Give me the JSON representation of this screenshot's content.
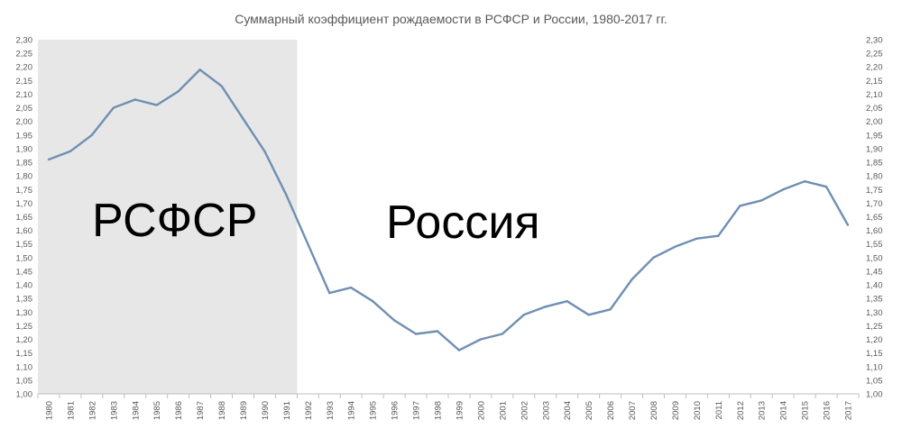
{
  "chart_data": {
    "type": "line",
    "title": "Суммарный коэффициент рождаемости в РСФСР и России, 1980-2017 гг.",
    "xlabel": "",
    "ylabel": "",
    "ylim": [
      1.0,
      2.3
    ],
    "ytick_step": 0.05,
    "y_axis_sides": [
      "left",
      "right"
    ],
    "grid": false,
    "decimal_separator": ",",
    "shaded_region": {
      "from": 1980,
      "to": 1991,
      "color": "#e7e7e7"
    },
    "region_labels": [
      {
        "text": "РСФСР",
        "period": "1980-1991"
      },
      {
        "text": "Россия",
        "period": "1992-2017"
      }
    ],
    "line_color": "#6f8fb3",
    "x": [
      1980,
      1981,
      1982,
      1983,
      1984,
      1985,
      1986,
      1987,
      1988,
      1989,
      1990,
      1991,
      1992,
      1993,
      1994,
      1995,
      1996,
      1997,
      1998,
      1999,
      2000,
      2001,
      2002,
      2003,
      2004,
      2005,
      2006,
      2007,
      2008,
      2009,
      2010,
      2011,
      2012,
      2013,
      2014,
      2015,
      2016,
      2017
    ],
    "series": [
      {
        "values": [
          1.86,
          1.89,
          1.95,
          2.05,
          2.08,
          2.06,
          2.11,
          2.19,
          2.13,
          2.01,
          1.89,
          1.73,
          1.55,
          1.37,
          1.39,
          1.34,
          1.27,
          1.22,
          1.23,
          1.16,
          1.2,
          1.22,
          1.29,
          1.32,
          1.34,
          1.29,
          1.31,
          1.42,
          1.5,
          1.54,
          1.57,
          1.58,
          1.69,
          1.71,
          1.75,
          1.78,
          1.76,
          1.62
        ]
      }
    ]
  }
}
